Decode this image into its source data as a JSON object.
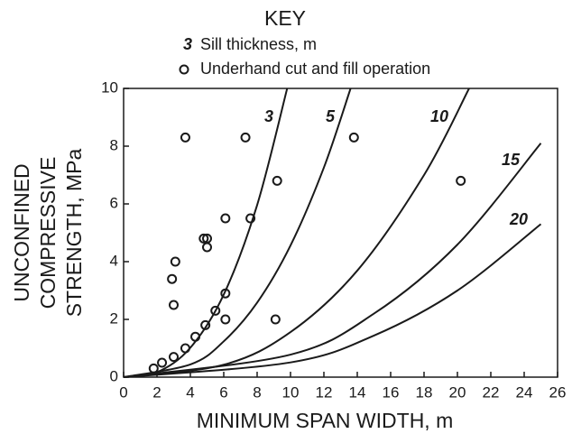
{
  "chart_data": {
    "type": "line",
    "key_title": "KEY",
    "sill_label": "Sill thickness, m",
    "x_label": "MINIMUM SPAN WIDTH, m",
    "y_label": [
      "UNCONFINED",
      "COMPRESSIVE",
      "STRENGTH, MPa"
    ],
    "xlim": [
      0,
      26
    ],
    "ylim": [
      0,
      10
    ],
    "xticks": [
      0,
      2,
      4,
      6,
      8,
      10,
      12,
      14,
      16,
      18,
      20,
      22,
      24,
      26
    ],
    "yticks": [
      0,
      2,
      4,
      6,
      8,
      10
    ],
    "color": "#1a1a1a",
    "series": [
      {
        "name": "3",
        "type": "line",
        "x": [
          0,
          2,
          4,
          6,
          8,
          9.8
        ],
        "values": [
          0,
          0.17,
          1.02,
          2.86,
          5.96,
          10
        ]
      },
      {
        "name": "5",
        "type": "line",
        "x": [
          0,
          4,
          6,
          8,
          10,
          12,
          13.6
        ],
        "values": [
          0,
          0.44,
          1.24,
          2.58,
          4.56,
          7.26,
          10
        ]
      },
      {
        "name": "10",
        "type": "line",
        "x": [
          0,
          6,
          10,
          14,
          18,
          20.7
        ],
        "values": [
          0,
          0.43,
          1.56,
          3.69,
          7.0,
          10
        ]
      },
      {
        "name": "15",
        "type": "line",
        "x": [
          0,
          10,
          15,
          20,
          25
        ],
        "values": [
          0,
          0.78,
          2.2,
          4.59,
          8.1
        ]
      },
      {
        "name": "20",
        "type": "line",
        "x": [
          0,
          10,
          15,
          20,
          25
        ],
        "values": [
          0,
          0.51,
          1.44,
          3.0,
          5.3
        ]
      },
      {
        "name": "Underhand cut and fill operation",
        "type": "scatter",
        "x": [
          1.8,
          2.3,
          3,
          3.7,
          4.3,
          4.9,
          5.5,
          6.1,
          6.1,
          3,
          2.9,
          3.1,
          4.8,
          5.0,
          5.0,
          6.1,
          7.6,
          3.7,
          7.3,
          9.2,
          9.1,
          13.8,
          20.2
        ],
        "values": [
          0.3,
          0.5,
          0.7,
          1.0,
          1.4,
          1.8,
          2.3,
          2.9,
          2.0,
          2.5,
          3.4,
          4.0,
          4.8,
          4.8,
          4.5,
          5.5,
          5.5,
          8.3,
          8.3,
          6.8,
          2.0,
          8.3,
          6.8
        ]
      }
    ]
  }
}
